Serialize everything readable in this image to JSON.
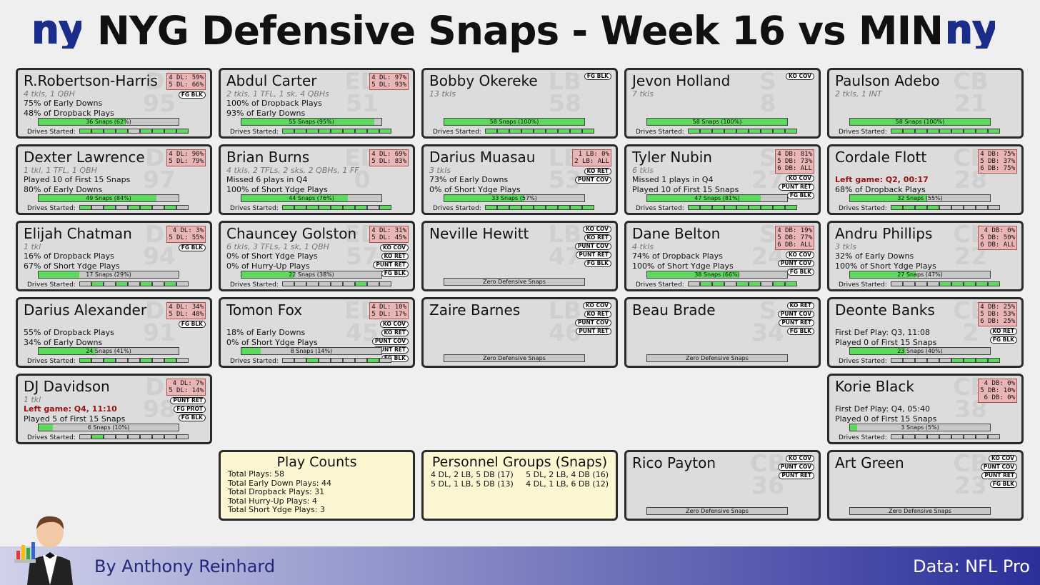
{
  "title": "NYG Defensive Snaps - Week 16 vs MIN",
  "logo_text": "ny",
  "colors": {
    "fill": "#5fd85f",
    "snap_bg": "#c8c8c8",
    "pos_box": "#e9b5b5",
    "footer_end": "#2b2f9a"
  },
  "players": [
    {
      "name": "R.Robertson-Harris",
      "pos": "DI",
      "num": "95",
      "sub": "4 tkls, 1 QBH",
      "lines": [
        "75% of Early Downs",
        "48% of Dropback Plays"
      ],
      "box": [
        "4 DL: 59%",
        "5 DL: 66%"
      ],
      "tags": [
        "FG BLK"
      ],
      "snaps": "36 Snaps (62%)",
      "pct": 62,
      "drives": [
        1,
        1,
        1,
        1,
        0,
        1,
        1,
        1,
        1
      ],
      "drives_label": "Drives Started:"
    },
    {
      "name": "Abdul Carter",
      "pos": "ED",
      "num": "51",
      "sub": "2 tkls, 1 TFL, 1 sk, 4 QBHs",
      "lines": [
        "100% of Dropback Plays",
        "93% of Early Downs"
      ],
      "box": [
        "4 DL: 97%",
        "5 DL: 93%"
      ],
      "tags": [],
      "snaps": "55 Snaps (95%)",
      "pct": 95,
      "drives": [
        1,
        1,
        1,
        1,
        1,
        1,
        1,
        1,
        1
      ],
      "drives_label": "Drives Started:"
    },
    {
      "name": "Bobby Okereke",
      "pos": "LB",
      "num": "58",
      "sub": "13 tkls",
      "lines": [],
      "box": [],
      "tags": [
        "FG BLK"
      ],
      "snaps": "58 Snaps (100%)",
      "pct": 100,
      "drives": [
        1,
        1,
        1,
        1,
        1,
        1,
        1,
        1,
        1
      ],
      "drives_label": "Drives Started:"
    },
    {
      "name": "Jevon Holland",
      "pos": "S",
      "num": "8",
      "sub": "7 tkls",
      "lines": [],
      "box": [],
      "tags": [
        "KO COV"
      ],
      "snaps": "58 Snaps (100%)",
      "pct": 100,
      "drives": [
        1,
        1,
        1,
        1,
        1,
        1,
        1,
        1,
        1
      ],
      "drives_label": "Drives Started:"
    },
    {
      "name": "Paulson Adebo",
      "pos": "CB",
      "num": "21",
      "sub": "2 tkls, 1 INT",
      "lines": [],
      "box": [],
      "tags": [],
      "snaps": "58 Snaps (100%)",
      "pct": 100,
      "drives": [
        1,
        1,
        1,
        1,
        1,
        1,
        1,
        1,
        1
      ],
      "drives_label": "Drives Started:"
    },
    {
      "name": "Dexter Lawrence",
      "pos": "DI",
      "num": "97",
      "sub": "1 tkl, 1 TFL, 1 QBH",
      "lines": [
        "Played 10 of First 15 Snaps",
        "80% of Early Downs"
      ],
      "box": [
        "4 DL: 90%",
        "5 DL: 79%"
      ],
      "tags": [],
      "snaps": "49 Snaps (84%)",
      "pct": 84,
      "drives": [
        1,
        0,
        1,
        0,
        1,
        1,
        0,
        1,
        0
      ],
      "drives_label": "Drives Started:"
    },
    {
      "name": "Brian Burns",
      "pos": "ED",
      "num": "0",
      "sub": "4 tkls, 2 TFLs, 2 sks, 2 QBHs, 1 FF",
      "lines": [
        "Missed 6 plays in Q4",
        "100% of Short Ydge Plays"
      ],
      "box": [
        "4 DL: 69%",
        "5 DL: 83%"
      ],
      "tags": [],
      "snaps": "44 Snaps (76%)",
      "pct": 76,
      "drives": [
        1,
        1,
        1,
        1,
        1,
        1,
        1,
        0,
        1
      ],
      "drives_label": "Drives Started:"
    },
    {
      "name": "Darius Muasau",
      "pos": "LB",
      "num": "53",
      "sub": "3 tkls",
      "lines": [
        "73% of Early Downs",
        "0% of Short Ydge Plays"
      ],
      "box": [
        "1 LB:  0%",
        "2 LB: ALL"
      ],
      "tags": [
        "KO RET",
        "PUNT COV"
      ],
      "snaps": "33 Snaps (57%)",
      "pct": 57,
      "drives": [
        1,
        1,
        1,
        1,
        1,
        1,
        1,
        1,
        1
      ],
      "drives_label": "Drives Started:"
    },
    {
      "name": "Tyler Nubin",
      "pos": "S",
      "num": "27",
      "sub": "6 tkls",
      "lines": [
        "Missed 1 plays in Q4",
        "Played 10 of First 15 Snaps"
      ],
      "box": [
        "4 DB: 81%",
        "5 DB: 73%",
        "6 DB: ALL"
      ],
      "tags": [
        "KO COV",
        "PUNT RET",
        "FG BLK"
      ],
      "snaps": "47 Snaps (81%)",
      "pct": 81,
      "drives": [
        1,
        1,
        1,
        1,
        1,
        1,
        1,
        1,
        1
      ],
      "drives_label": "Drives Started:"
    },
    {
      "name": "Cordale Flott",
      "pos": "CB",
      "num": "28",
      "sub": "",
      "lines": [
        "Left game: Q2, 00:17",
        "68% of Dropback Plays"
      ],
      "left_first": true,
      "box": [
        "4 DB: 75%",
        "5 DB: 37%",
        "6 DB: 75%"
      ],
      "tags": [],
      "snaps": "32 Snaps (55%)",
      "pct": 55,
      "drives": [
        1,
        1,
        1,
        1,
        0,
        0,
        0,
        0,
        0
      ],
      "drives_label": "Drives Started:"
    },
    {
      "name": "Elijah Chatman",
      "pos": "DI",
      "num": "94",
      "sub": "1 tkl",
      "lines": [
        "16% of Dropback Plays",
        "67% of Short Ydge Plays"
      ],
      "box": [
        "4 DL:  3%",
        "5 DL: 55%"
      ],
      "tags": [
        "FG BLK"
      ],
      "snaps": "17 Snaps (29%)",
      "pct": 29,
      "drives": [
        0,
        1,
        0,
        1,
        0,
        1,
        0,
        1,
        0
      ],
      "drives_label": "Drives Started:"
    },
    {
      "name": "Chauncey Golston",
      "pos": "ED",
      "num": "57",
      "sub": "6 tkls, 3 TFLs, 1 sk, 1 QBH",
      "lines": [
        "0% of Short Ydge Plays",
        "0% of Hurry-Up Plays"
      ],
      "box": [
        "4 DL: 31%",
        "5 DL: 45%"
      ],
      "tags": [
        "KO COV",
        "KO RET",
        "PUNT RET",
        "FG BLK"
      ],
      "snaps": "22 Snaps (38%)",
      "pct": 38,
      "drives": [
        0,
        0,
        0,
        0,
        0,
        0,
        1,
        0,
        0
      ],
      "drives_label": "Drives Started:"
    },
    {
      "name": "Neville Hewitt",
      "pos": "LB",
      "num": "47",
      "sub": "",
      "lines": [],
      "box": [],
      "tags": [
        "KO COV",
        "KO RET",
        "PUNT COV",
        "PUNT RET",
        "FG BLK"
      ],
      "snaps": "Zero Defensive Snaps",
      "pct": 0,
      "drives": null,
      "drives_label": ""
    },
    {
      "name": "Dane Belton",
      "pos": "S",
      "num": "24",
      "sub": "4 tkls",
      "lines": [
        "74% of Dropback Plays",
        "100% of Short Ydge Plays"
      ],
      "box": [
        "4 DB: 19%",
        "5 DB: 77%",
        "6 DB: ALL"
      ],
      "tags": [
        "KO COV",
        "PUNT COV",
        "FG BLK"
      ],
      "snaps": "38 Snaps (66%)",
      "pct": 66,
      "drives": [
        0,
        1,
        1,
        0,
        1,
        1,
        0,
        1,
        1
      ],
      "drives_label": "Drives Started:"
    },
    {
      "name": "Andru Phillips",
      "pos": "CB",
      "num": "22",
      "sub": "3 tkls",
      "lines": [
        "32% of Early Downs",
        "100% of Short Ydge Plays"
      ],
      "box": [
        "4 DB:  0%",
        "5 DB: 50%",
        "6 DB: ALL"
      ],
      "tags": [],
      "snaps": "27 Snaps (47%)",
      "pct": 47,
      "drives": [
        0,
        0,
        0,
        0,
        1,
        1,
        1,
        1,
        1
      ],
      "drives_label": "Drives Started:"
    },
    {
      "name": "Darius Alexander",
      "pos": "DI",
      "num": "91",
      "sub": "",
      "lines": [
        "55% of Dropback Plays",
        "34% of Early Downs"
      ],
      "box": [
        "4 DL: 34%",
        "5 DL: 48%"
      ],
      "tags": [
        "FG BLK"
      ],
      "snaps": "24 Snaps (41%)",
      "pct": 41,
      "drives": [
        1,
        0,
        1,
        0,
        0,
        1,
        0,
        1,
        0
      ],
      "drives_label": "Drives Started:"
    },
    {
      "name": "Tomon Fox",
      "pos": "ED",
      "num": "45",
      "sub": "",
      "lines": [
        "18% of Early Downs",
        "0% of Short Ydge Plays"
      ],
      "box": [
        "4 DL: 10%",
        "5 DL: 17%"
      ],
      "tags": [
        "KO COV",
        "KO RET",
        "PUNT COV",
        "PUNT RET",
        "FG BLK"
      ],
      "snaps": "8 Snaps (14%)",
      "pct": 14,
      "drives": [
        0,
        0,
        1,
        0,
        0,
        0,
        0,
        1,
        0
      ],
      "drives_label": "Drives Started:"
    },
    {
      "name": "Zaire Barnes",
      "pos": "LB",
      "num": "46",
      "sub": "",
      "lines": [],
      "box": [],
      "tags": [
        "KO COV",
        "KO RET",
        "PUNT COV",
        "PUNT RET"
      ],
      "snaps": "Zero Defensive Snaps",
      "pct": 0,
      "drives": null,
      "drives_label": ""
    },
    {
      "name": "Beau Brade",
      "pos": "S",
      "num": "34",
      "sub": "",
      "lines": [],
      "box": [],
      "tags": [
        "KO RET",
        "PUNT COV",
        "PUNT RET",
        "FG BLK"
      ],
      "snaps": "Zero Defensive Snaps",
      "pct": 0,
      "drives": null,
      "drives_label": ""
    },
    {
      "name": "Deonte Banks",
      "pos": "CB",
      "num": "2",
      "sub": "",
      "lines": [
        "First Def Play: Q3, 11:08",
        "Played 0 of First 15 Snaps"
      ],
      "box": [
        "4 DB: 25%",
        "5 DB: 53%",
        "6 DB: 25%"
      ],
      "tags": [
        "KO RET",
        "FG BLK"
      ],
      "snaps": "23 Snaps (40%)",
      "pct": 40,
      "drives": [
        0,
        0,
        0,
        0,
        0,
        1,
        1,
        1,
        1
      ],
      "drives_label": "Drives Started:"
    },
    {
      "name": "DJ Davidson",
      "pos": "DI",
      "num": "98",
      "sub": "1 tkl",
      "lines": [
        "Left game: Q4, 11:10",
        "Played 5 of First 15 Snaps"
      ],
      "left_first": true,
      "box": [
        "4 DL:  7%",
        "5 DL: 14%"
      ],
      "tags": [
        "PUNT RET",
        "FG PROT",
        "FG BLK"
      ],
      "snaps": "6 Snaps (10%)",
      "pct": 10,
      "drives": [
        0,
        1,
        0,
        0,
        0,
        0,
        0,
        0,
        0
      ],
      "drives_label": "Drives Started:"
    },
    {
      "name": "Korie Black",
      "pos": "CB",
      "num": "38",
      "sub": "",
      "lines": [
        "First Def Play: Q4, 05:40",
        "Played 0 of First 15 Snaps"
      ],
      "box": [
        "4 DB:  0%",
        "5 DB: 10%",
        "6 DB:  0%"
      ],
      "tags": [],
      "snaps": "3 Snaps (5%)",
      "pct": 5,
      "drives": [
        0,
        0,
        0,
        0,
        0,
        0,
        0,
        0,
        0
      ],
      "drives_label": "Drives Started:"
    },
    {
      "name": "Rico Payton",
      "pos": "CB",
      "num": "36",
      "sub": "",
      "lines": [],
      "box": [],
      "tags": [
        "KO COV",
        "PUNT COV",
        "PUNT RET"
      ],
      "snaps": "Zero Defensive Snaps",
      "pct": 0,
      "drives": null,
      "drives_label": ""
    },
    {
      "name": "Art Green",
      "pos": "CB",
      "num": "23",
      "sub": "",
      "lines": [],
      "box": [],
      "tags": [
        "KO COV",
        "PUNT COV",
        "PUNT RET",
        "FG BLK"
      ],
      "snaps": "Zero Defensive Snaps",
      "pct": 0,
      "drives": null,
      "drives_label": ""
    }
  ],
  "play_counts": {
    "title": "Play Counts",
    "lines": [
      "Total Plays: 58",
      "Total Early Down Plays: 44",
      "Total Dropback Plays: 31",
      "Total Hurry-Up Plays: 4",
      "Total Short Ydge Plays: 3"
    ]
  },
  "personnel": {
    "title": "Personnel Groups (Snaps)",
    "left": [
      "4 DL, 2 LB, 5 DB (17)",
      "5 DL, 1 LB, 5 DB (13)"
    ],
    "right": [
      "5 DL, 2 LB, 4 DB (16)",
      "4 DL, 1 LB, 6 DB (12)"
    ]
  },
  "footer": {
    "author": "By Anthony Reinhard",
    "source": "Data: NFL Pro"
  }
}
